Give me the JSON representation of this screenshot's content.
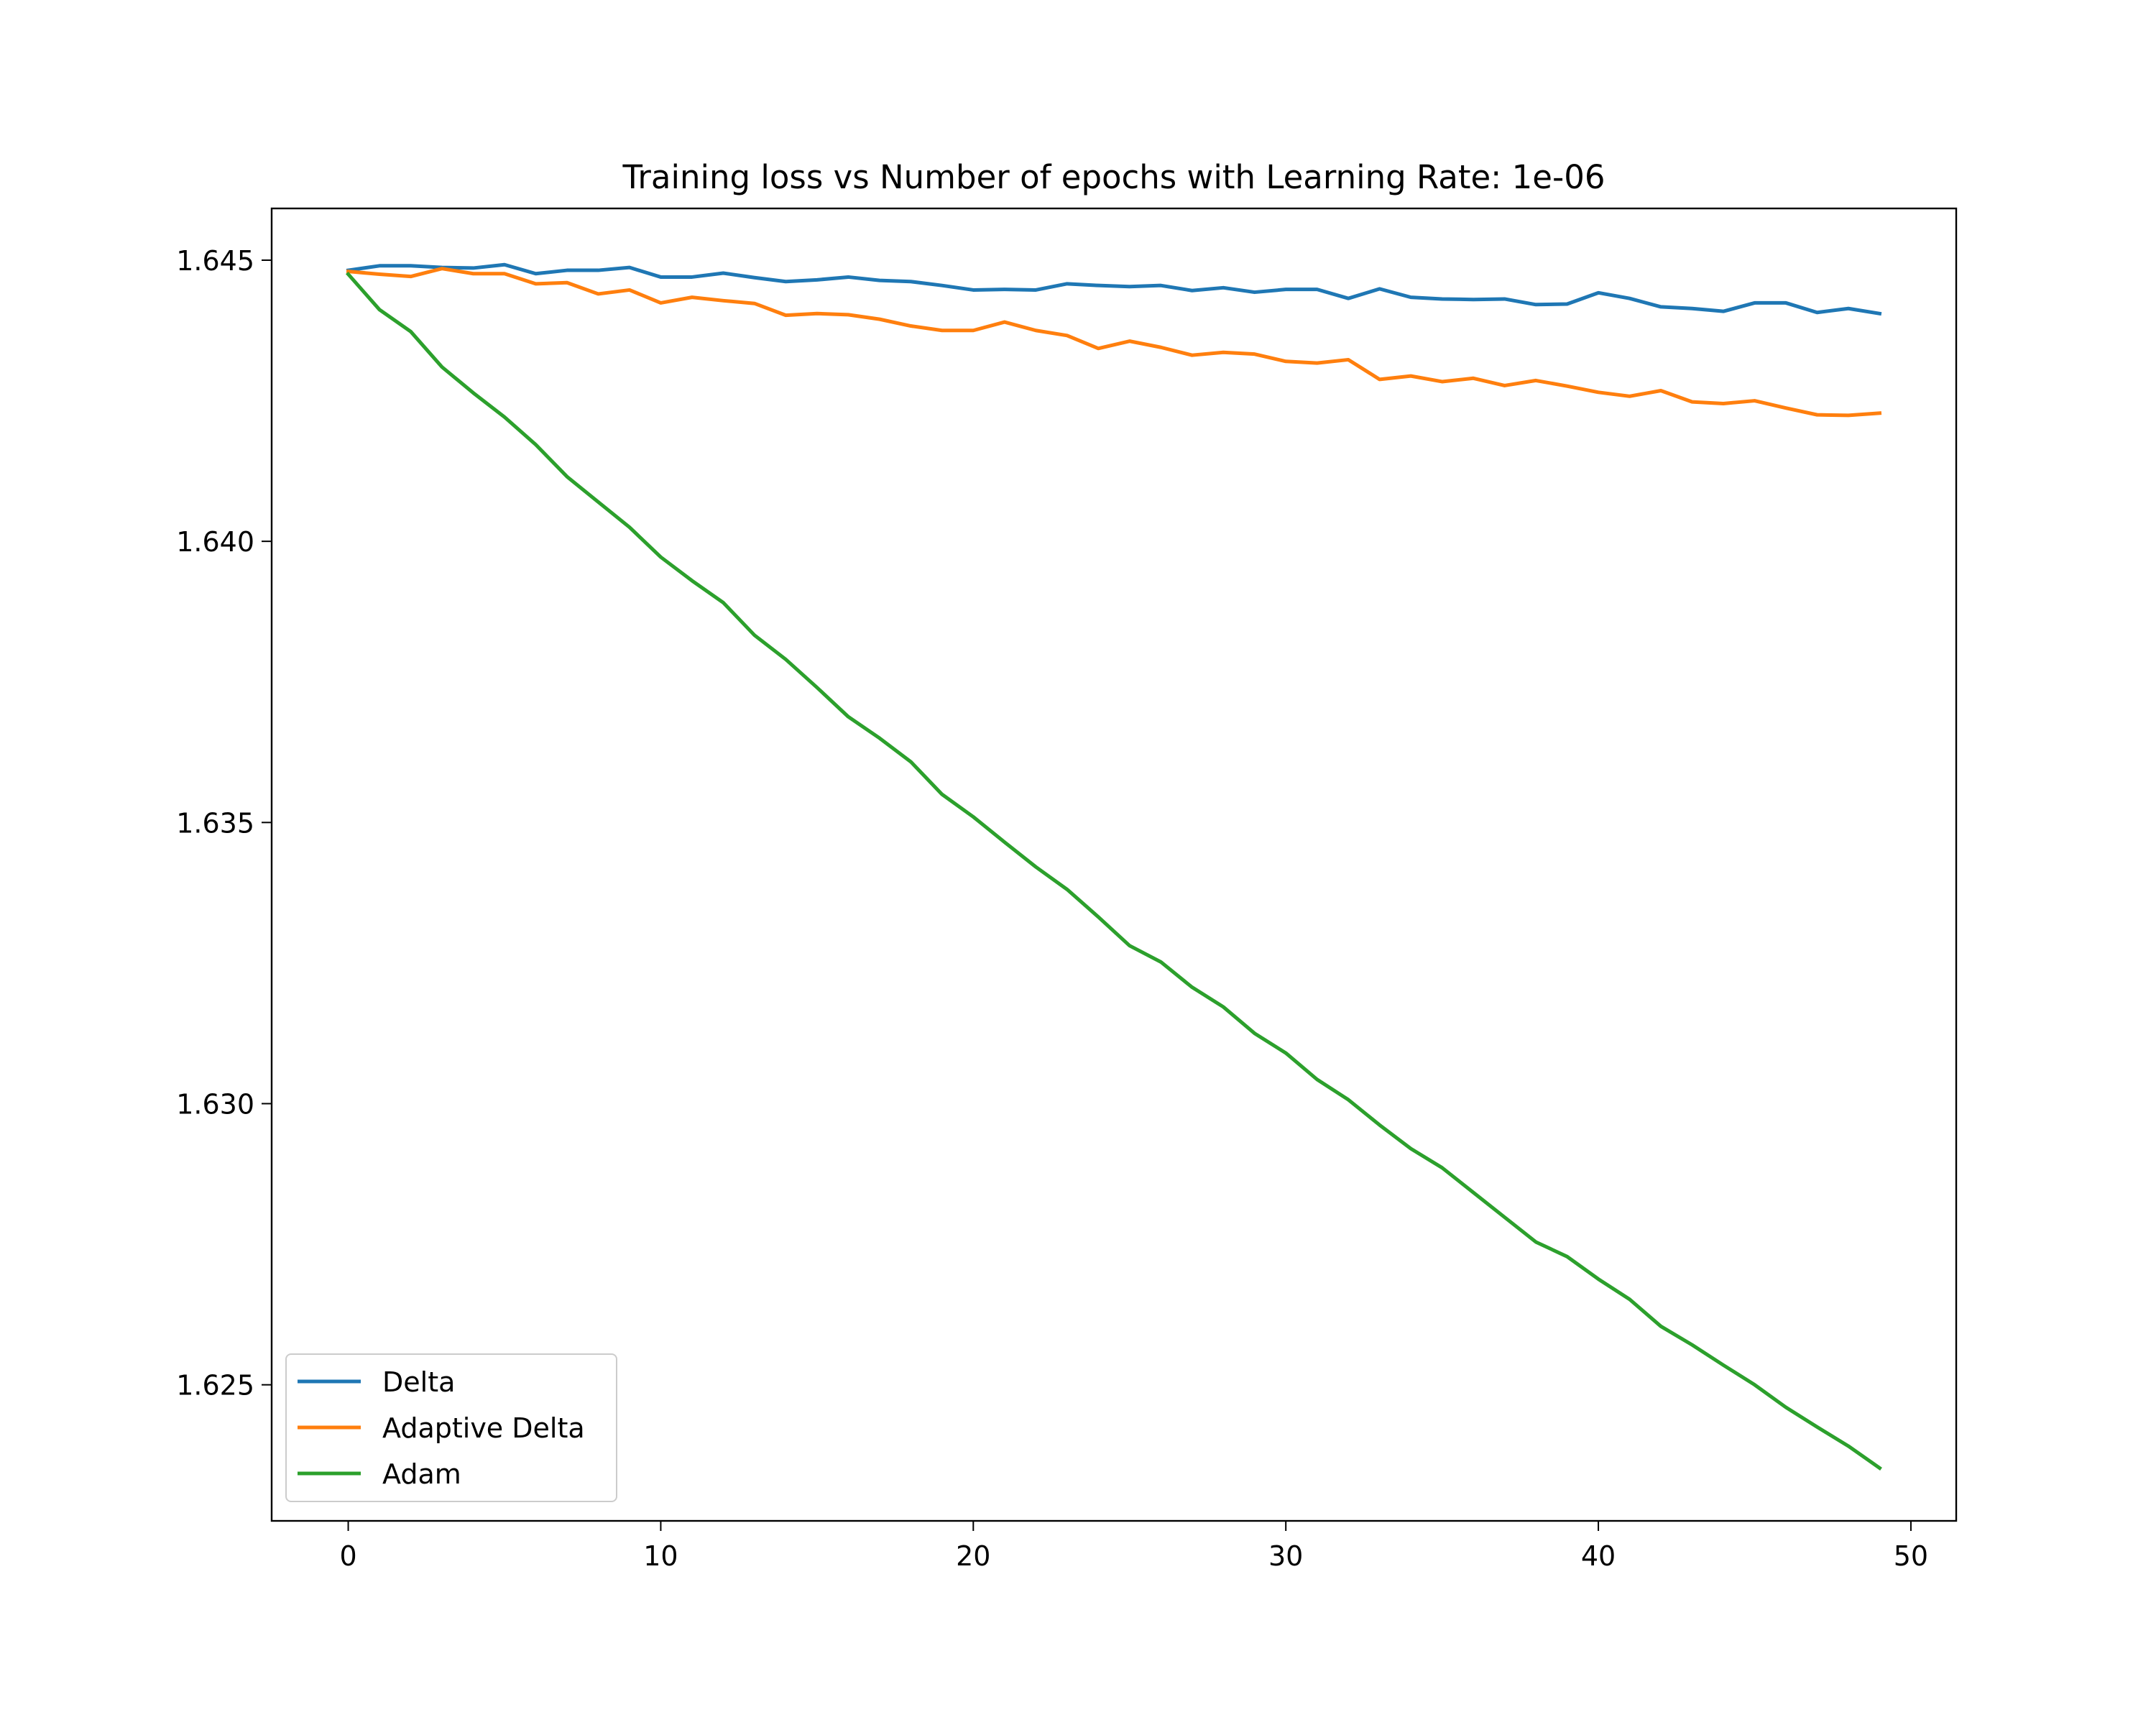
{
  "chart_data": {
    "type": "line",
    "title": "Training loss vs Number of epochs with Learning Rate: 1e-06",
    "xlabel": "",
    "ylabel": "",
    "xlim": [
      -2.45,
      51.45
    ],
    "ylim": [
      1.62258,
      1.64592
    ],
    "xticks": [
      0,
      10,
      20,
      30,
      40,
      50
    ],
    "yticks": [
      1.625,
      1.63,
      1.635,
      1.64,
      1.645
    ],
    "ytick_labels": [
      "1.625",
      "1.630",
      "1.635",
      "1.640",
      "1.645"
    ],
    "grid": false,
    "legend_position": "lower-left",
    "x": [
      0,
      1,
      2,
      3,
      4,
      5,
      6,
      7,
      8,
      9,
      10,
      11,
      12,
      13,
      14,
      15,
      16,
      17,
      18,
      19,
      20,
      21,
      22,
      23,
      24,
      25,
      26,
      27,
      28,
      29,
      30,
      31,
      32,
      33,
      34,
      35,
      36,
      37,
      38,
      39,
      40,
      41,
      42,
      43,
      44,
      45,
      46,
      47,
      48,
      49
    ],
    "series": [
      {
        "name": "Delta",
        "color": "#1f77b4",
        "values": [
          1.64482,
          1.6449,
          1.6449,
          1.64487,
          1.64486,
          1.64492,
          1.64476,
          1.64482,
          1.64482,
          1.64487,
          1.6447,
          1.6447,
          1.64477,
          1.64469,
          1.64462,
          1.64465,
          1.6447,
          1.64464,
          1.64462,
          1.64455,
          1.64447,
          1.64448,
          1.64447,
          1.64458,
          1.64455,
          1.64453,
          1.64455,
          1.64446,
          1.64451,
          1.64443,
          1.64448,
          1.64448,
          1.64432,
          1.64449,
          1.64434,
          1.64431,
          1.6443,
          1.64431,
          1.64421,
          1.64422,
          1.64442,
          1.64432,
          1.64417,
          1.64414,
          1.64409,
          1.64424,
          1.64424,
          1.64407,
          1.64414,
          1.64405
        ]
      },
      {
        "name": "Adaptive Delta",
        "color": "#ff7f0e",
        "values": [
          1.6448,
          1.64475,
          1.64471,
          1.64485,
          1.64476,
          1.64476,
          1.64458,
          1.6446,
          1.6444,
          1.64447,
          1.64424,
          1.64434,
          1.64428,
          1.64423,
          1.64402,
          1.64405,
          1.64403,
          1.64395,
          1.64383,
          1.64375,
          1.64375,
          1.6439,
          1.64375,
          1.64366,
          1.64343,
          1.64356,
          1.64345,
          1.64331,
          1.64336,
          1.64333,
          1.6432,
          1.64317,
          1.64323,
          1.64288,
          1.64294,
          1.64284,
          1.6429,
          1.64277,
          1.64286,
          1.64276,
          1.64265,
          1.64258,
          1.64268,
          1.64248,
          1.64245,
          1.6425,
          1.64237,
          1.64225,
          1.64224,
          1.64228
        ]
      },
      {
        "name": "Adam",
        "color": "#2ca02c",
        "values": [
          1.64475,
          1.64412,
          1.64373,
          1.6431,
          1.64264,
          1.64221,
          1.64172,
          1.64115,
          1.6407,
          1.64025,
          1.63972,
          1.6393,
          1.63891,
          1.63833,
          1.6379,
          1.6374,
          1.63688,
          1.6365,
          1.63608,
          1.6355,
          1.6351,
          1.63465,
          1.63421,
          1.63381,
          1.63332,
          1.63281,
          1.63252,
          1.63207,
          1.63172,
          1.63125,
          1.6309,
          1.63043,
          1.63007,
          1.62962,
          1.6292,
          1.62886,
          1.62842,
          1.62798,
          1.62754,
          1.62728,
          1.62688,
          1.62652,
          1.62604,
          1.62571,
          1.62535,
          1.625,
          1.6246,
          1.62425,
          1.62391,
          1.62352
        ]
      }
    ]
  }
}
